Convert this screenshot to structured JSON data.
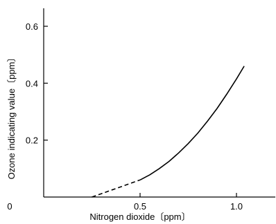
{
  "chart_data": {
    "type": "line",
    "title": "",
    "xlabel": "Nitrogen dioxide〔ppm〕",
    "ylabel": "Ozone indicating value〔ppm〕",
    "xlim": [
      0,
      1.2
    ],
    "ylim": [
      0,
      0.65
    ],
    "x_ticks": [
      0.5,
      1.0
    ],
    "x_tick_labels": [
      "0.5",
      "1.0"
    ],
    "y_ticks": [
      0.2,
      0.4,
      0.6
    ],
    "y_tick_labels": [
      "0.2",
      "0.4",
      "0.6"
    ],
    "origin_label": "0",
    "grid": false,
    "series": [
      {
        "style": "dashed",
        "x": [
          0.25,
          0.3,
          0.35,
          0.4,
          0.45,
          0.5
        ],
        "y": [
          0.0,
          0.012,
          0.024,
          0.036,
          0.048,
          0.06
        ]
      },
      {
        "style": "solid",
        "x": [
          0.5,
          0.55,
          0.6,
          0.65,
          0.7,
          0.75,
          0.8,
          0.85,
          0.9,
          0.95,
          1.0,
          1.04
        ],
        "y": [
          0.06,
          0.078,
          0.1,
          0.125,
          0.155,
          0.188,
          0.225,
          0.267,
          0.312,
          0.362,
          0.415,
          0.46
        ]
      }
    ]
  }
}
